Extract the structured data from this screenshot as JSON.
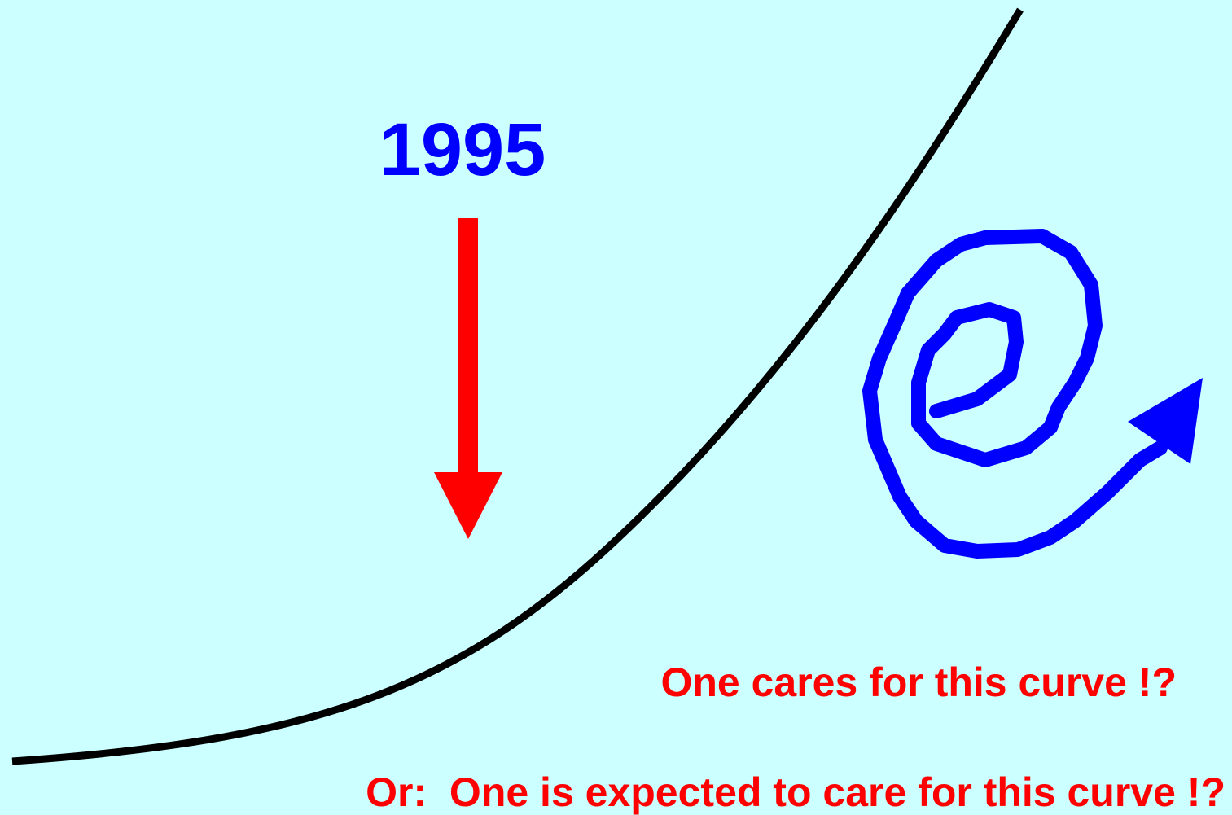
{
  "year_label": "1995",
  "caption_1": "One cares for this curve !?",
  "caption_2": "Or:  One is expected to care for this curve !?"
}
